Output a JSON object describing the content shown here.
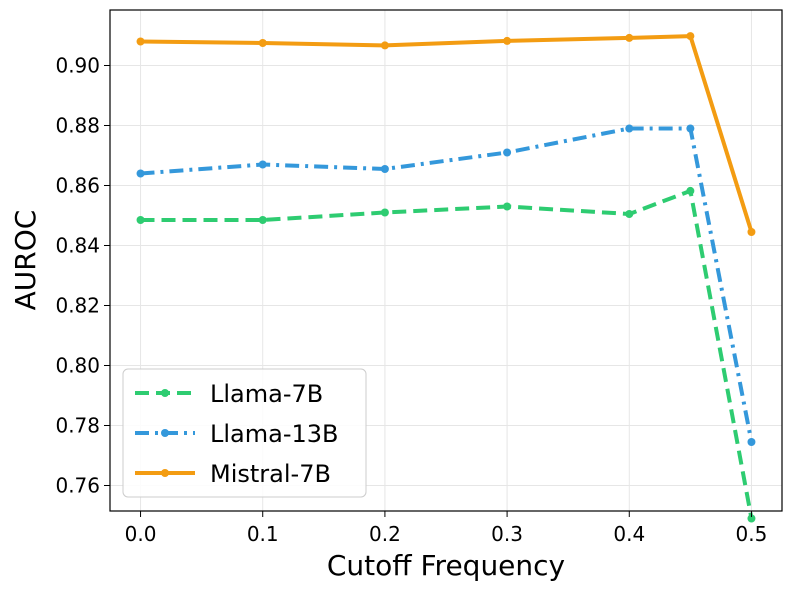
{
  "chart_data": {
    "type": "line",
    "title": "",
    "xlabel": "Cutoff Frequency",
    "ylabel": "AUROC",
    "x": [
      0.0,
      0.1,
      0.2,
      0.3,
      0.4,
      0.45,
      0.5
    ],
    "xlim": [
      -0.025,
      0.525
    ],
    "ylim": [
      0.7515,
      0.9185
    ],
    "x_ticks": [
      0.0,
      0.1,
      0.2,
      0.3,
      0.4,
      0.5
    ],
    "x_tick_labels": [
      "0.0",
      "0.1",
      "0.2",
      "0.3",
      "0.4",
      "0.5"
    ],
    "y_ticks": [
      0.76,
      0.78,
      0.8,
      0.82,
      0.84,
      0.86,
      0.88,
      0.9
    ],
    "y_tick_labels": [
      "0.76",
      "0.78",
      "0.80",
      "0.82",
      "0.84",
      "0.86",
      "0.88",
      "0.90"
    ],
    "grid": true,
    "legend_position": "lower-left",
    "series": [
      {
        "name": "Llama-7B",
        "color": "#2ecc71",
        "dash": "dashed",
        "values": [
          0.8485,
          0.8485,
          0.851,
          0.853,
          0.8505,
          0.8582,
          0.749
        ]
      },
      {
        "name": "Llama-13B",
        "color": "#3498db",
        "dash": "dashdot",
        "values": [
          0.864,
          0.867,
          0.8655,
          0.871,
          0.879,
          0.879,
          0.7745
        ]
      },
      {
        "name": "Mistral-7B",
        "color": "#f39c12",
        "dash": "solid",
        "values": [
          0.908,
          0.9075,
          0.9067,
          0.9082,
          0.9092,
          0.9098,
          0.8445
        ]
      }
    ]
  }
}
